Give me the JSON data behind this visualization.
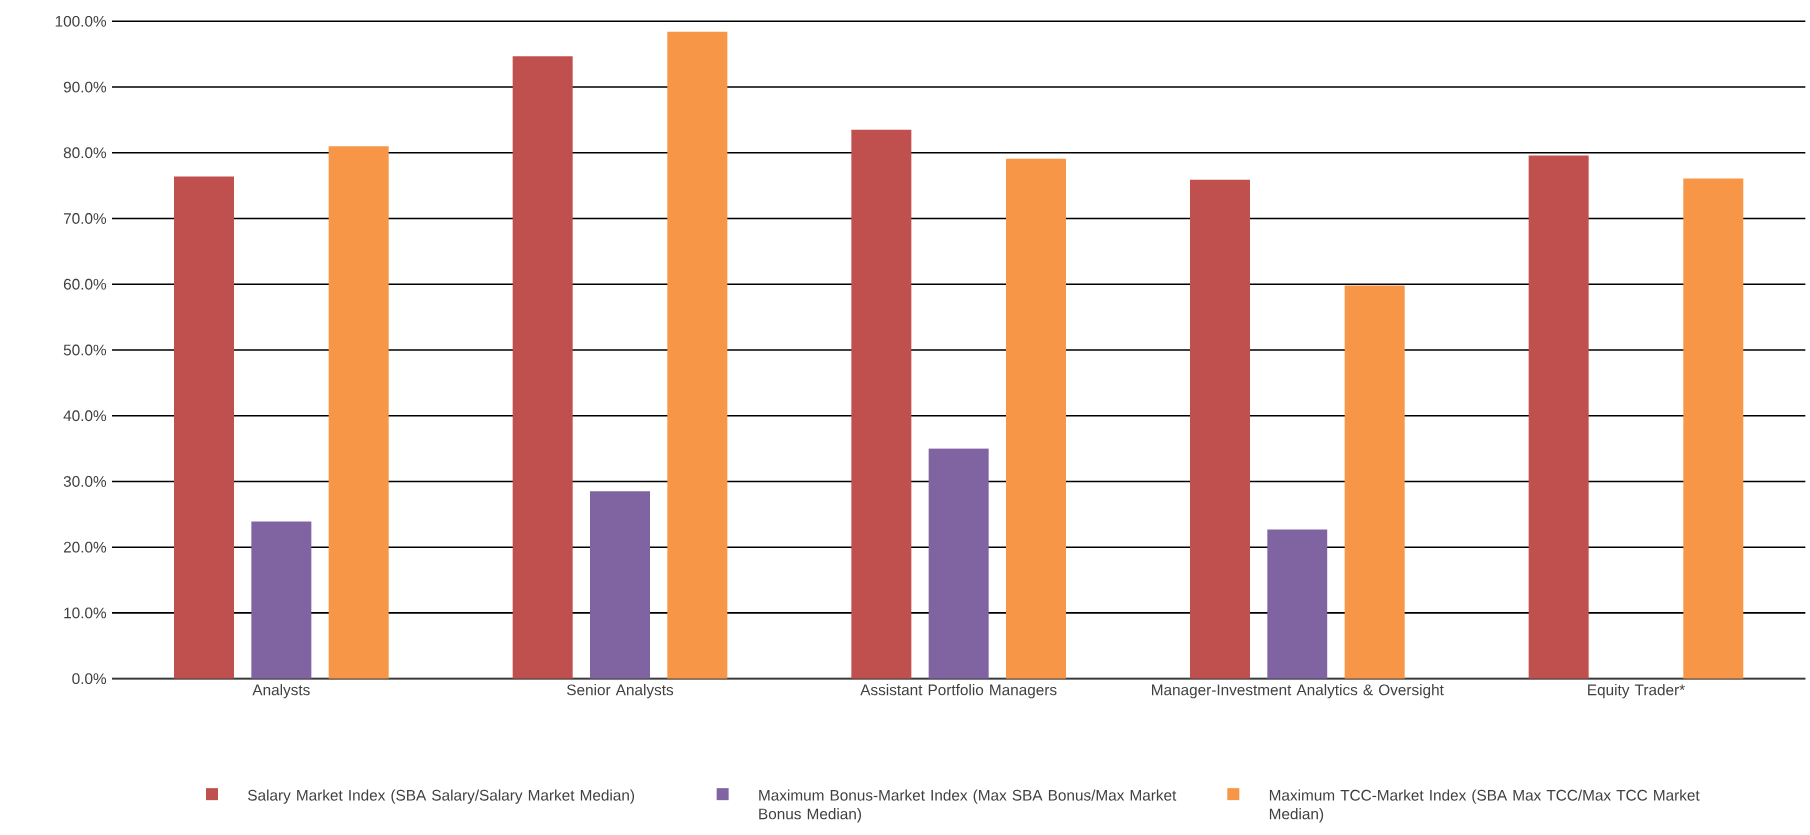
{
  "chart_data": {
    "type": "bar",
    "categories": [
      "Analysts",
      "Senior Analysts",
      "Assistant Portfolio Managers",
      "Manager-Investment Analytics & Oversight",
      "Equity Trader*"
    ],
    "series": [
      {
        "name": "Salary Market Index (SBA Salary/Salary Market Median)",
        "color": "#c0504d",
        "values": [
          76.4,
          94.7,
          83.5,
          75.9,
          79.6
        ]
      },
      {
        "name": "Maximum Bonus-Market Index (Max SBA Bonus/Max Market Bonus Median)",
        "color": "#8064a2",
        "values": [
          23.9,
          28.5,
          35.0,
          22.7,
          null
        ]
      },
      {
        "name": "Maximum TCC-Market Index (SBA Max TCC/Max TCC Market Median)",
        "color": "#f79646",
        "values": [
          81.0,
          98.4,
          79.1,
          59.8,
          76.1
        ]
      }
    ],
    "ylim": [
      0,
      100
    ],
    "yticks": [
      {
        "value": 0,
        "label": "0.0%"
      },
      {
        "value": 10,
        "label": "10.0%"
      },
      {
        "value": 20,
        "label": "20.0%"
      },
      {
        "value": 30,
        "label": "30.0%"
      },
      {
        "value": 40,
        "label": "40.0%"
      },
      {
        "value": 50,
        "label": "50.0%"
      },
      {
        "value": 60,
        "label": "60.0%"
      },
      {
        "value": 70,
        "label": "70.0%"
      },
      {
        "value": 80,
        "label": "80.0%"
      },
      {
        "value": 90,
        "label": "90.0%"
      },
      {
        "value": 100,
        "label": "100.0%"
      }
    ],
    "grid": "y",
    "legend": "bottom"
  }
}
